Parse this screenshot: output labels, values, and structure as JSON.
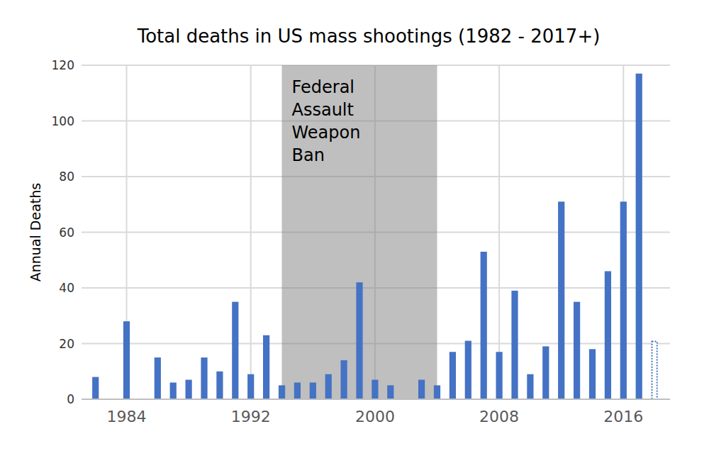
{
  "chart_data": {
    "type": "bar",
    "title": "Total deaths in US mass shootings (1982 - 2017+)",
    "y_label": "Annual Deaths",
    "x": [
      1982,
      1983,
      1984,
      1985,
      1986,
      1987,
      1988,
      1989,
      1990,
      1991,
      1992,
      1993,
      1994,
      1995,
      1996,
      1997,
      1998,
      1999,
      2000,
      2001,
      2002,
      2003,
      2004,
      2005,
      2006,
      2007,
      2008,
      2009,
      2010,
      2011,
      2012,
      2013,
      2014,
      2015,
      2016,
      2017,
      2018
    ],
    "series": [
      {
        "color": "#4472c4",
        "values": [
          8,
          0,
          28,
          0,
          15,
          6,
          7,
          15,
          10,
          35,
          9,
          23,
          5,
          6,
          6,
          9,
          14,
          42,
          7,
          5,
          0,
          7,
          5,
          17,
          21,
          53,
          17,
          39,
          9,
          19,
          71,
          35,
          18,
          46,
          71,
          117,
          null
        ]
      },
      {
        "color": "#4472c4",
        "line_style": "dotted",
        "values": [
          null,
          null,
          null,
          null,
          null,
          null,
          null,
          null,
          null,
          null,
          null,
          null,
          null,
          null,
          null,
          null,
          null,
          null,
          null,
          null,
          null,
          null,
          null,
          null,
          null,
          null,
          null,
          null,
          null,
          null,
          null,
          null,
          null,
          null,
          null,
          null,
          21
        ]
      }
    ],
    "annotations": [
      {
        "text": "Federal Assault Weapon Ban",
        "x_range": [
          1994,
          2004
        ]
      }
    ],
    "xlim": [
      1981.1,
      2019
    ],
    "xticks": [
      1984,
      1992,
      2000,
      2008,
      2016
    ],
    "ylim": [
      0,
      120
    ],
    "yticks": [
      0,
      20,
      40,
      60,
      80,
      100,
      120
    ],
    "grid": true
  }
}
